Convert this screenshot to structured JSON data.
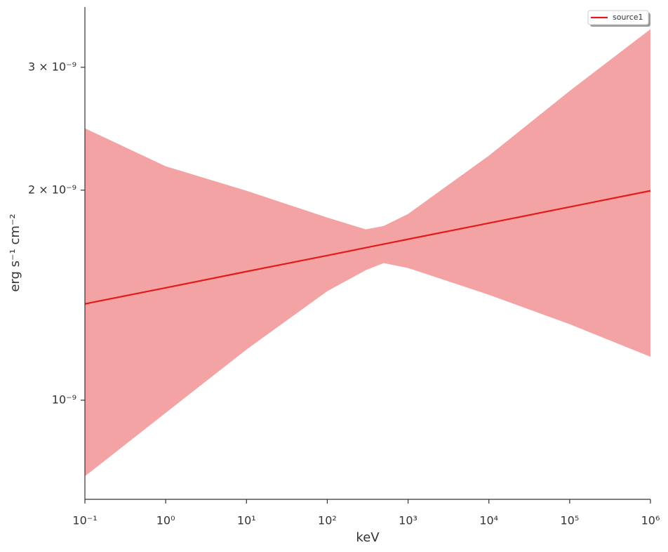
{
  "chart_data": {
    "type": "line",
    "x_label": "keV",
    "y_label": "erg s⁻¹ cm⁻²",
    "xscale": "log",
    "yscale": "log",
    "x": [
      0.1,
      1,
      10,
      100,
      300,
      500,
      1000,
      10000,
      100000,
      1000000
    ],
    "series": [
      {
        "name": "source1",
        "color": "#e31a1c",
        "band_color": "#f4a3a4",
        "values": [
          1.374e-09,
          1.449e-09,
          1.529e-09,
          1.612e-09,
          1.654e-09,
          1.674e-09,
          1.701e-09,
          1.794e-09,
          1.892e-09,
          1.996e-09
        ],
        "upper": [
          2.453e-09,
          2.164e-09,
          1.996e-09,
          1.827e-09,
          1.757e-09,
          1.777e-09,
          1.849e-09,
          2.241e-09,
          2.775e-09,
          3.402e-09
        ],
        "lower": [
          7.78e-10,
          9.59e-10,
          1.182e-09,
          1.433e-09,
          1.536e-09,
          1.572e-09,
          1.547e-09,
          1.416e-09,
          1.285e-09,
          1.154e-09
        ]
      }
    ],
    "xlim": [
      0.1,
      1000000
    ],
    "ylim": [
      7.21e-10,
      3.66e-09
    ],
    "xticks": [
      {
        "value": 0.1,
        "label": "10⁻¹"
      },
      {
        "value": 1,
        "label": "10⁰"
      },
      {
        "value": 10,
        "label": "10¹"
      },
      {
        "value": 100,
        "label": "10²"
      },
      {
        "value": 1000,
        "label": "10³"
      },
      {
        "value": 10000,
        "label": "10⁴"
      },
      {
        "value": 100000,
        "label": "10⁵"
      },
      {
        "value": 1000000,
        "label": "10⁶"
      }
    ],
    "yticks": [
      {
        "value": 1e-09,
        "label": "10⁻⁹"
      },
      {
        "value": 2e-09,
        "label": "2 × 10⁻⁹"
      },
      {
        "value": 3e-09,
        "label": "3 × 10⁻⁹"
      }
    ],
    "legend": "upper right"
  }
}
